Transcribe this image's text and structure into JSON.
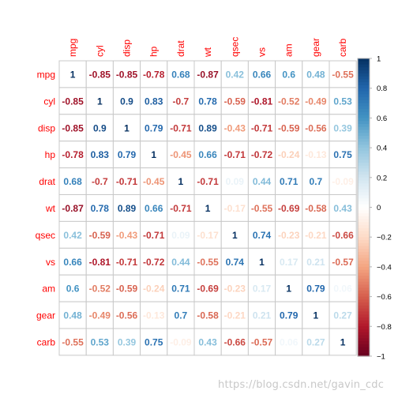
{
  "chart_data": {
    "type": "heatmap",
    "variables": [
      "mpg",
      "cyl",
      "disp",
      "hp",
      "drat",
      "wt",
      "qsec",
      "vs",
      "am",
      "gear",
      "carb"
    ],
    "matrix": [
      [
        1,
        -0.85,
        -0.85,
        -0.78,
        0.68,
        -0.87,
        0.42,
        0.66,
        0.6,
        0.48,
        -0.55
      ],
      [
        -0.85,
        1,
        0.9,
        0.83,
        -0.7,
        0.78,
        -0.59,
        -0.81,
        -0.52,
        -0.49,
        0.53
      ],
      [
        -0.85,
        0.9,
        1,
        0.79,
        -0.71,
        0.89,
        -0.43,
        -0.71,
        -0.59,
        -0.56,
        0.39
      ],
      [
        -0.78,
        0.83,
        0.79,
        1,
        -0.45,
        0.66,
        -0.71,
        -0.72,
        -0.24,
        -0.13,
        0.75
      ],
      [
        0.68,
        -0.7,
        -0.71,
        -0.45,
        1,
        -0.71,
        0.09,
        0.44,
        0.71,
        0.7,
        -0.09
      ],
      [
        -0.87,
        0.78,
        0.89,
        0.66,
        -0.71,
        1,
        -0.17,
        -0.55,
        -0.69,
        -0.58,
        0.43
      ],
      [
        0.42,
        -0.59,
        -0.43,
        -0.71,
        0.09,
        -0.17,
        1,
        0.74,
        -0.23,
        -0.21,
        -0.66
      ],
      [
        0.66,
        -0.81,
        -0.71,
        -0.72,
        0.44,
        -0.55,
        0.74,
        1,
        0.17,
        0.21,
        -0.57
      ],
      [
        0.6,
        -0.52,
        -0.59,
        -0.24,
        0.71,
        -0.69,
        -0.23,
        0.17,
        1,
        0.79,
        0.06
      ],
      [
        0.48,
        -0.49,
        -0.56,
        -0.13,
        0.7,
        -0.58,
        -0.21,
        0.21,
        0.79,
        1,
        0.27
      ],
      [
        -0.55,
        0.53,
        0.39,
        0.75,
        -0.09,
        0.43,
        -0.66,
        -0.57,
        0.06,
        0.27,
        1
      ]
    ],
    "colorbar": {
      "range": [
        -1,
        1
      ],
      "ticks": [
        "1",
        "0.8",
        "0.6",
        "0.4",
        "0.2",
        "0",
        "−0.2",
        "−0.4",
        "−0.6",
        "−0.8",
        "−1"
      ]
    },
    "colors": {
      "label": "#ff0000",
      "grid": "#c8c8c8",
      "neg_stops": [
        "#67001f",
        "#b2182b",
        "#d6604d",
        "#f4a582",
        "#fddbc7",
        "#ffffff"
      ],
      "pos_stops": [
        "#ffffff",
        "#d1e5f0",
        "#92c5de",
        "#4393c3",
        "#2166ac",
        "#053061"
      ]
    }
  },
  "watermark": "https://blog.csdn.net/gavin_cdc"
}
